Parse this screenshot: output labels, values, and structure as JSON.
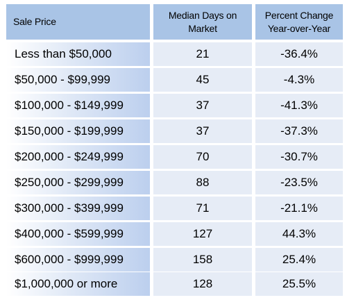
{
  "headers": {
    "sale_price": "Sale Price",
    "median_days_line1": "Median Days on",
    "median_days_line2": "Market",
    "pct_change_line1": "Percent Change",
    "pct_change_line2": "Year-over-Year"
  },
  "rows": [
    {
      "price": "Less than $50,000",
      "days": "21",
      "change": "-36.4%"
    },
    {
      "price": "$50,000 - $99,999",
      "days": "45",
      "change": "-4.3%"
    },
    {
      "price": "$100,000 - $149,999",
      "days": "37",
      "change": "-41.3%"
    },
    {
      "price": "$150,000 - $199,999",
      "days": "37",
      "change": "-37.3%"
    },
    {
      "price": "$200,000 - $249,999",
      "days": "70",
      "change": "-30.7%"
    },
    {
      "price": "$250,000 - $299,999",
      "days": "88",
      "change": "-23.5%"
    },
    {
      "price": "$300,000 - $399,999",
      "days": "71",
      "change": "-21.1%"
    },
    {
      "price": "$400,000 - $599,999",
      "days": "127",
      "change": "44.3%"
    },
    {
      "price": "$600,000 - $999,999",
      "days": "158",
      "change": "25.4%"
    },
    {
      "price": "$1,000,000 or more",
      "days": "128",
      "change": "25.5%"
    }
  ],
  "colors": {
    "header_bg": "#a9c4e6",
    "cell_bg": "#e6ecf6",
    "first_col_gradient_end": "#bccfee"
  }
}
